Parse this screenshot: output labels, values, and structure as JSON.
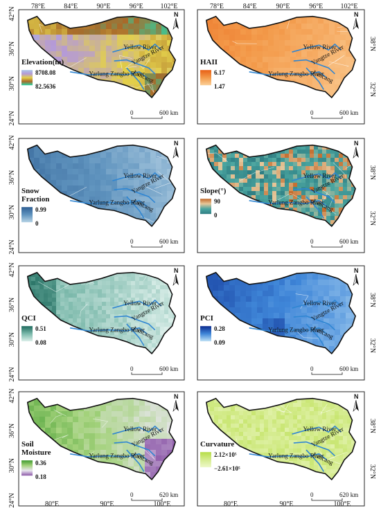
{
  "top_lon_labels": [
    "78°E",
    "84°E",
    "90°E",
    "96°E",
    "102°E"
  ],
  "bottom_lon_labels": [
    "80°E",
    "90°E",
    "100°E"
  ],
  "lat_labels": [
    "42°N",
    "36°N",
    "30°N",
    "24°N"
  ],
  "right_lat_labels": [
    "38°N",
    "32°N"
  ],
  "rivers": [
    "Yellow River",
    "Yangtze River",
    "Lancang",
    "Yarlung Zangbo River"
  ],
  "north_label": "N",
  "scale_zero": "0",
  "panels": [
    {
      "id": "elevation",
      "title_lines": [
        "Elevation(m)"
      ],
      "max": "8708.08",
      "min": "82.5636",
      "colors": [
        "#a9c6e8",
        "#b59ad6",
        "#e3d04b",
        "#a86a2a",
        "#2bd6a6"
      ],
      "scale": "600 km"
    },
    {
      "id": "haii",
      "title_lines": [
        "HAII"
      ],
      "max": "6.17",
      "min": "1.47",
      "colors": [
        "#e85f15",
        "#f39a4a",
        "#fbcf98"
      ],
      "scale": "600 km"
    },
    {
      "id": "snow",
      "title_lines": [
        "Snow",
        "Fraction"
      ],
      "max": "0.99",
      "min": "0",
      "colors": [
        "#2f5f93",
        "#5f93be",
        "#b8d4e6"
      ],
      "scale": "600 km"
    },
    {
      "id": "slope",
      "title_lines": [
        "Slope(°)"
      ],
      "max": "90",
      "min": "0",
      "colors": [
        "#c26a2b",
        "#e7c79a",
        "#4aa5a0",
        "#2f7e83"
      ],
      "scale": "600 km"
    },
    {
      "id": "qci",
      "title_lines": [
        "QCI"
      ],
      "max": "0.51",
      "min": "0.08",
      "colors": [
        "#1f6b5e",
        "#7ab8aa",
        "#dcefea"
      ],
      "scale": "600 km"
    },
    {
      "id": "pci",
      "title_lines": [
        "PCI"
      ],
      "max": "0.28",
      "min": "0.09",
      "colors": [
        "#0b2a8f",
        "#3f86d8",
        "#bfe1f6"
      ],
      "scale": "600 km"
    },
    {
      "id": "soil",
      "title_lines": [
        "Soil",
        "Moisture"
      ],
      "max": "0.36",
      "min": "0.18",
      "colors": [
        "#3f9a2e",
        "#a3d27b",
        "#e9e6ef",
        "#8c57a8"
      ],
      "scale": "620 km"
    },
    {
      "id": "curv",
      "title_lines": [
        "Curvature"
      ],
      "max": "2.12×10⁵",
      "min": "−2.61×10⁵",
      "colors": [
        "#b7dd48",
        "#d5ec8f",
        "#eef8c9"
      ],
      "scale": "620 km"
    }
  ]
}
